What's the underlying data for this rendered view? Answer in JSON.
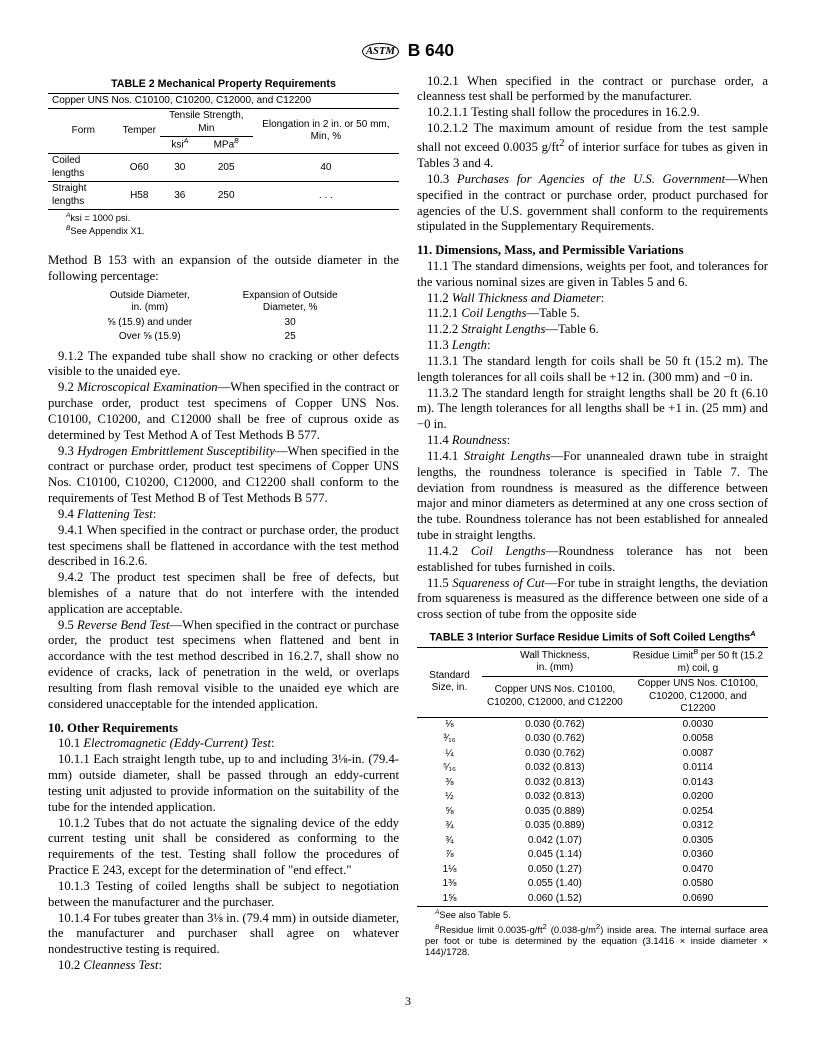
{
  "header": {
    "designation": "B 640",
    "logo_text": "ASTM"
  },
  "table2": {
    "title": "TABLE 2  Mechanical Property Requirements",
    "header_note": "Copper UNS Nos. C10100, C10200, C12000, and C12200",
    "col_form": "Form",
    "col_temper": "Temper",
    "col_tensile": "Tensile Strength, Min",
    "col_ksi": "ksi",
    "col_mpa": "MPa",
    "col_elong": "Elongation in 2 in. or 50 mm, Min, %",
    "rows": [
      {
        "form": "Coiled lengths",
        "temper": "O60",
        "ksi": "30",
        "mpa": "205",
        "elong": "40"
      },
      {
        "form": "Straight lengths",
        "temper": "H58",
        "ksi": "36",
        "mpa": "250",
        "elong": ". . ."
      }
    ],
    "fn_a": "ksi = 1000 psi.",
    "fn_b": "See Appendix X1."
  },
  "body": {
    "p1": "Method B 153 with an expansion of the outside diameter in the following percentage:",
    "mini": {
      "h1": "Outside Diameter,\nin. (mm)",
      "h2": "Expansion of Outside\nDiameter, %",
      "r1a": "⅝ (15.9) and under",
      "r1b": "30",
      "r2a": "Over ⅝ (15.9)",
      "r2b": "25"
    },
    "s912": "9.1.2 The expanded tube shall show no cracking or other defects visible to the unaided eye.",
    "s92t": "Microscopical Examination",
    "s92": "—When specified in the contract or purchase order, product test specimens of Copper UNS Nos. C10100, C10200, and C12000 shall be free of cuprous oxide as determined by Test Method A of Test Methods B 577.",
    "s93t": "Hydrogen Embrittlement Susceptibility",
    "s93": "—When specified in the contract or purchase order, product test specimens of Copper UNS Nos. C10100, C10200, C12000, and C12200 shall conform to the requirements of Test Method B of Test Methods B 577.",
    "s94": "Flattening Test",
    "s941": "9.4.1 When specified in the contract or purchase order, the product test specimens shall be flattened in accordance with the test method described in 16.2.6.",
    "s942": "9.4.2 The product test specimen shall be free of defects, but blemishes of a nature that do not interfere with the intended application are acceptable.",
    "s95t": "Reverse Bend Test",
    "s95": "—When specified in the contract or purchase order, the product test specimens when flattened and bent in accordance with the test method described in 16.2.7, shall show no evidence of cracks, lack of penetration in the weld, or overlaps resulting from flash removal visible to the unaided eye which are considered unacceptable for the intended application.",
    "h10": "10.  Other Requirements",
    "s101": "Electromagnetic (Eddy-Current) Test",
    "s1011": "10.1.1 Each straight length tube, up to and including 3⅛-in. (79.4-mm) outside diameter, shall be passed through an eddy-current testing unit adjusted to provide information on the suitability of the tube for the intended application.",
    "s1012": "10.1.2 Tubes that do not actuate the signaling device of the eddy current testing unit shall be considered as conforming to the requirements of the test. Testing shall follow the procedures of Practice E 243, except for the determination of \"end effect.\"",
    "s1013": "10.1.3 Testing of coiled lengths shall be subject to negotiation between the manufacturer and the purchaser.",
    "s1014": "10.1.4 For tubes greater than 3⅛ in. (79.4 mm) in outside diameter, the manufacturer and purchaser shall agree on whatever nondestructive testing is required.",
    "s102": "Cleanness Test",
    "s1021": "10.2.1 When specified in the contract or purchase order, a cleanness test shall be performed by the manufacturer.",
    "s10211": "10.2.1.1 Testing shall follow the procedures in 16.2.9.",
    "s10212a": "10.2.1.2 The maximum amount of residue from the test sample shall not exceed 0.0035 g/ft",
    "s10212b": " of interior surface for tubes as given in Tables 3 and 4.",
    "s103t": "Purchases for Agencies of the U.S. Government",
    "s103": "—When specified in the contract or purchase order, product purchased for agencies of the U.S. government shall conform to the requirements stipulated in the Supplementary Requirements.",
    "h11": "11.  Dimensions, Mass, and Permissible Variations",
    "s111": "11.1 The standard dimensions, weights per foot, and tolerances for the various nominal sizes are given in Tables 5 and 6.",
    "s112": "Wall Thickness and Diameter",
    "s1121": "Coil Lengths",
    "s1121b": "—Table 5.",
    "s1122": "Straight Lengths",
    "s1122b": "—Table 6.",
    "s113": "Length",
    "s1131": "11.3.1 The standard length for coils shall be 50 ft (15.2 m). The length tolerances for all coils shall be +12 in. (300 mm) and −0 in.",
    "s1132": "11.3.2 The standard length for straight lengths shall be 20 ft (6.10 m). The length tolerances for all lengths shall be +1 in. (25 mm) and −0 in.",
    "s114": "Roundness",
    "s1141t": "Straight Lengths",
    "s1141": "—For unannealed drawn tube in straight lengths, the roundness tolerance is specified in Table 7. The deviation from roundness is measured as the difference between major and minor diameters as determined at any one cross section of the tube. Roundness tolerance has not been established for annealed tube in straight lengths.",
    "s1142t": "Coil Lengths",
    "s1142": "—Roundness tolerance has not been established for tubes furnished in coils.",
    "s115t": "Squareness of Cut",
    "s115": "—For tube in straight lengths, the deviation from squareness is measured as the difference between one side of a cross section of tube from the opposite side"
  },
  "table3": {
    "title": "TABLE 3  Interior Surface Residue Limits of Soft Coiled Lengths",
    "col1": "Standard Size, in.",
    "col2": "Wall Thickness,\nin. (mm)",
    "col3a": "Residue Limit",
    "col3b": " per 50 ft (15.2 m) coil, g",
    "sub": "Copper UNS Nos. C10100, C10200, C12000, and C12200",
    "rows": [
      {
        "s": "⅛",
        "w": "0.030 (0.762)",
        "r": "0.0030"
      },
      {
        "s": "³⁄₁₆",
        "w": "0.030 (0.762)",
        "r": "0.0058"
      },
      {
        "s": "¼",
        "w": "0.030 (0.762)",
        "r": "0.0087"
      },
      {
        "s": "⁵⁄₁₆",
        "w": "0.032 (0.813)",
        "r": "0.0114"
      },
      {
        "s": "⅜",
        "w": "0.032 (0.813)",
        "r": "0.0143"
      },
      {
        "s": "½",
        "w": "0.032 (0.813)",
        "r": "0.0200"
      },
      {
        "s": "⅝",
        "w": "0.035 (0.889)",
        "r": "0.0254"
      },
      {
        "s": "¾",
        "w": "0.035 (0.889)",
        "r": "0.0312"
      },
      {
        "s": "¾",
        "w": "0.042 (1.07)",
        "r": "0.0305"
      },
      {
        "s": "⅞",
        "w": "0.045 (1.14)",
        "r": "0.0360"
      },
      {
        "s": "1⅛",
        "w": "0.050 (1.27)",
        "r": "0.0470"
      },
      {
        "s": "1⅜",
        "w": "0.055 (1.40)",
        "r": "0.0580"
      },
      {
        "s": "1⅝",
        "w": "0.060 (1.52)",
        "r": "0.0690"
      }
    ],
    "fn_a": "See also Table 5.",
    "fn_b1": "Residue limit 0.0035-g/ft",
    "fn_b2": " (0.038-g/m",
    "fn_b3": ") inside area. The internal surface area per foot or tube is determined by the equation (3.1416 × inside diameter × 144)/1728."
  },
  "page": "3"
}
